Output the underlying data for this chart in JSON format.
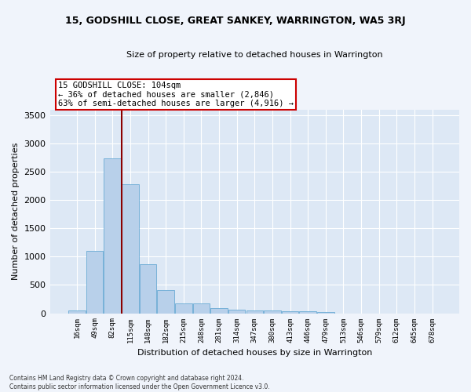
{
  "title": "15, GODSHILL CLOSE, GREAT SANKEY, WARRINGTON, WA5 3RJ",
  "subtitle": "Size of property relative to detached houses in Warrington",
  "xlabel": "Distribution of detached houses by size in Warrington",
  "ylabel": "Number of detached properties",
  "bar_color": "#b8d0ea",
  "bar_edge_color": "#6aaad4",
  "background_color": "#dde8f5",
  "grid_color": "#ffffff",
  "annotation_line1": "15 GODSHILL CLOSE: 104sqm",
  "annotation_line2": "← 36% of detached houses are smaller (2,846)",
  "annotation_line3": "63% of semi-detached houses are larger (4,916) →",
  "vline_color": "#8b0000",
  "categories": [
    "16sqm",
    "49sqm",
    "82sqm",
    "115sqm",
    "148sqm",
    "182sqm",
    "215sqm",
    "248sqm",
    "281sqm",
    "314sqm",
    "347sqm",
    "380sqm",
    "413sqm",
    "446sqm",
    "479sqm",
    "513sqm",
    "546sqm",
    "579sqm",
    "612sqm",
    "645sqm",
    "678sqm"
  ],
  "values": [
    50,
    1100,
    2730,
    2280,
    870,
    410,
    170,
    170,
    95,
    60,
    50,
    50,
    35,
    35,
    25,
    0,
    0,
    0,
    0,
    0,
    0
  ],
  "ylim": [
    0,
    3600
  ],
  "yticks": [
    0,
    500,
    1000,
    1500,
    2000,
    2500,
    3000,
    3500
  ],
  "footnote_line1": "Contains HM Land Registry data © Crown copyright and database right 2024.",
  "footnote_line2": "Contains public sector information licensed under the Open Government Licence v3.0.",
  "annotation_box_edge_color": "#cc0000",
  "fig_bg_color": "#f0f4fb",
  "title_fontsize": 9,
  "subtitle_fontsize": 8,
  "xlabel_fontsize": 8,
  "ylabel_fontsize": 8
}
